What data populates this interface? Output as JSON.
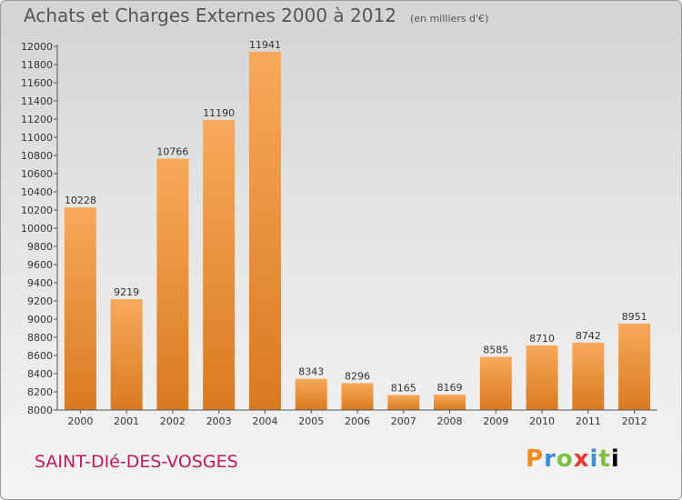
{
  "header": {
    "title": "Achats et Charges Externes 2000 à 2012",
    "unit": "(en milliers d'€)"
  },
  "footer": {
    "place": "SAINT-DIé-DES-VOSGES",
    "logo": [
      "P",
      "r",
      "o",
      "x",
      "i",
      "t",
      "i"
    ]
  },
  "colors": {
    "bar_top": "#f7a95a",
    "bar_bottom": "#d97a20",
    "place": "#c2185b"
  },
  "chart_data": {
    "type": "bar",
    "title": "Achats et Charges Externes 2000 à 2012",
    "subtitle": "(en milliers d'€)",
    "xlabel": "",
    "ylabel": "",
    "categories": [
      "2000",
      "2001",
      "2002",
      "2003",
      "2004",
      "2005",
      "2006",
      "2007",
      "2008",
      "2009",
      "2010",
      "2011",
      "2012"
    ],
    "values": [
      10228,
      9219,
      10766,
      11190,
      11941,
      8343,
      8296,
      8165,
      8169,
      8585,
      8710,
      8742,
      8951
    ],
    "ylim": [
      8000,
      12000
    ],
    "yticks": [
      8000,
      8200,
      8400,
      8600,
      8800,
      9000,
      9200,
      9400,
      9600,
      9800,
      10000,
      10200,
      10400,
      10600,
      10800,
      11000,
      11200,
      11400,
      11600,
      11800,
      12000
    ],
    "grid": false,
    "data_labels": true
  }
}
